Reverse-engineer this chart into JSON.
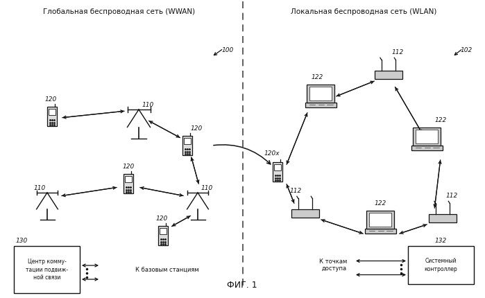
{
  "title_left": "Глобальная беспроводная сеть (WWAN)",
  "title_right": "Локальная беспроводная сеть (WLAN)",
  "fig_label": "ФИГ. 1",
  "bg_color": "#ffffff",
  "label_100": "100",
  "label_102": "102",
  "label_110": "110",
  "label_112": "112",
  "label_120": "120",
  "label_120x": "120x",
  "label_122": "122",
  "label_130": "130",
  "label_132": "132",
  "box_130_text": "Центр комму-\nтации подвиж-\nной связи",
  "box_130_side": "К базовым станциям",
  "box_132_text": "Системный\nконтроллер",
  "box_132_side": "К точкам\nдоступа",
  "font_size_title": 7.5,
  "font_size_label": 6.5,
  "font_size_box": 5.5,
  "font_size_figcap": 9,
  "lc": "#111111"
}
